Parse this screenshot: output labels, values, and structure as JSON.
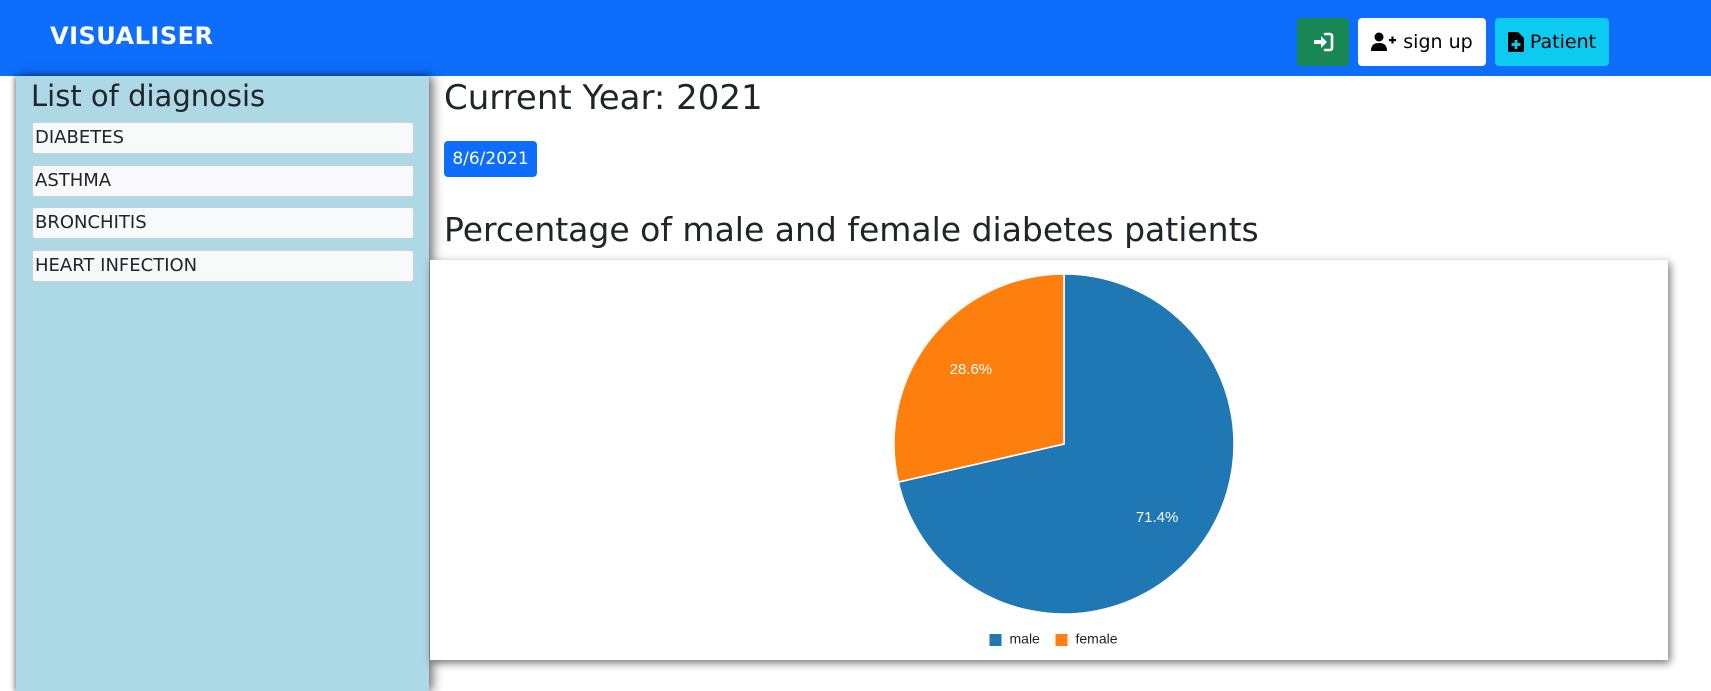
{
  "navbar": {
    "brand": "VISUALISER",
    "login_icon": "sign-in-icon",
    "signup_label": "sign up",
    "signup_icon": "user-plus-icon",
    "patient_label": "Patient",
    "patient_icon": "file-medical-icon"
  },
  "sidebar": {
    "title": "List of diagnosis",
    "items": [
      {
        "label": "DIABETES"
      },
      {
        "label": "ASTHMA"
      },
      {
        "label": "BRONCHITIS"
      },
      {
        "label": "HEART INFECTION"
      }
    ]
  },
  "main": {
    "year_title": "Current Year: 2021",
    "date": "8/6/2021",
    "chart_heading": "Percentage of male and female diabetes patients"
  },
  "colors": {
    "primary": "#0d6efd",
    "success": "#198754",
    "info": "#0dcaf0",
    "sidebar_bg": "#add8e6"
  },
  "chart_data": {
    "type": "pie",
    "title": "Percentage of male and female diabetes patients",
    "categories": [
      "male",
      "female"
    ],
    "values": [
      71.4,
      28.6
    ],
    "labels": [
      "71.4%",
      "28.6%"
    ],
    "colors": [
      "#1f77b4",
      "#ff7f0e"
    ],
    "legend": "bottom"
  }
}
